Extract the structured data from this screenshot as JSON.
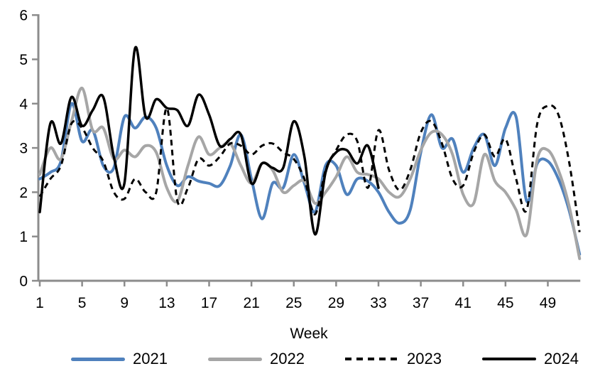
{
  "chart_data": {
    "type": "line",
    "title": "",
    "xlabel": "Week",
    "ylabel": "",
    "x_range": [
      1,
      52
    ],
    "ylim": [
      0,
      6
    ],
    "y_ticks": [
      0,
      1,
      2,
      3,
      4,
      5,
      6
    ],
    "x_ticks": [
      1,
      5,
      9,
      13,
      17,
      21,
      25,
      29,
      33,
      37,
      41,
      45,
      49
    ],
    "grid": false,
    "legend_position": "bottom",
    "axis_color": "#8c8c8c",
    "text_color": "#000000",
    "series": [
      {
        "name": "2021",
        "color": "#4F81BD",
        "style": "solid",
        "width": 4,
        "start_week": 1,
        "values": [
          2.3,
          2.45,
          2.7,
          4.0,
          3.15,
          3.4,
          2.6,
          2.55,
          3.7,
          3.45,
          3.7,
          3.45,
          2.6,
          2.15,
          2.35,
          2.25,
          2.2,
          2.15,
          2.6,
          3.3,
          2.3,
          1.4,
          2.2,
          2.1,
          2.85,
          2.2,
          1.55,
          2.6,
          2.6,
          1.95,
          2.3,
          2.25,
          2.0,
          1.55,
          1.3,
          1.6,
          2.9,
          3.75,
          3.0,
          3.2,
          2.45,
          3.0,
          3.3,
          2.6,
          3.45,
          3.7,
          1.8,
          2.65,
          2.7,
          2.3,
          1.6,
          0.6
        ]
      },
      {
        "name": "2022",
        "color": "#A6A6A6",
        "style": "solid",
        "width": 4,
        "start_week": 1,
        "values": [
          2.4,
          3.0,
          2.75,
          3.6,
          4.35,
          3.4,
          3.45,
          2.75,
          2.95,
          2.8,
          3.05,
          2.9,
          2.1,
          1.8,
          2.6,
          3.25,
          2.85,
          3.0,
          3.1,
          2.6,
          2.2,
          2.65,
          2.5,
          2.0,
          2.15,
          2.25,
          1.75,
          2.0,
          2.35,
          2.8,
          2.45,
          2.4,
          2.3,
          2.0,
          1.9,
          2.3,
          2.95,
          3.35,
          3.3,
          2.85,
          1.95,
          1.75,
          2.85,
          2.25,
          2.0,
          1.6,
          1.05,
          2.75,
          2.95,
          2.5,
          1.7,
          0.5
        ]
      },
      {
        "name": "2023",
        "color": "#000000",
        "style": "dashed",
        "width": 3,
        "start_week": 1,
        "values": [
          1.9,
          2.3,
          2.6,
          3.55,
          3.45,
          3.0,
          2.7,
          2.0,
          1.85,
          2.3,
          2.0,
          2.0,
          3.9,
          1.8,
          2.1,
          2.75,
          2.6,
          2.8,
          3.1,
          3.05,
          2.85,
          3.05,
          3.1,
          2.9,
          2.75,
          2.3,
          1.5,
          2.5,
          2.95,
          3.3,
          3.15,
          2.1,
          3.4,
          2.5,
          2.05,
          2.5,
          3.35,
          3.6,
          3.1,
          2.3,
          2.15,
          2.9,
          3.3,
          2.8,
          3.2,
          2.3,
          1.6,
          3.55,
          3.95,
          3.75,
          2.7,
          1.1
        ]
      },
      {
        "name": "2024",
        "color": "#000000",
        "style": "solid",
        "width": 3.5,
        "start_week": 1,
        "values": [
          1.55,
          3.55,
          3.1,
          4.15,
          3.5,
          3.85,
          4.15,
          2.8,
          2.2,
          5.25,
          3.7,
          4.1,
          3.9,
          3.85,
          3.5,
          4.2,
          3.75,
          3.05,
          3.2,
          3.3,
          2.2,
          2.65,
          2.55,
          2.55,
          3.6,
          2.8,
          1.05,
          2.45,
          2.9,
          2.95,
          2.65,
          3.05,
          2.1
        ]
      }
    ]
  }
}
